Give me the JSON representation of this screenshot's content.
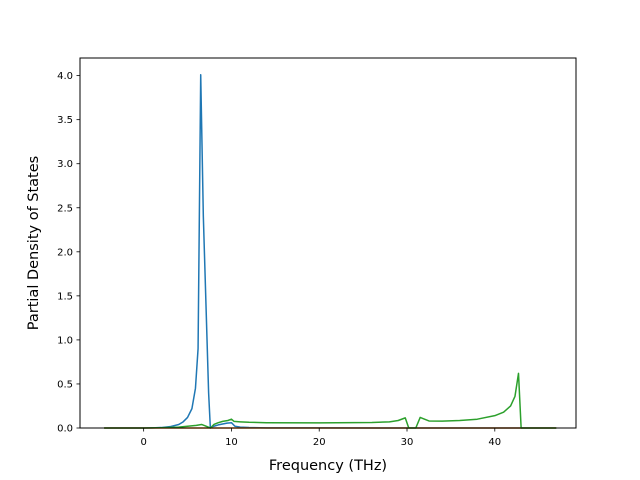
{
  "chart_data": {
    "type": "line",
    "title": "",
    "xlabel": "Frequency (THz)",
    "ylabel": "Partial Density of States",
    "xlim": [
      -7.25,
      49.25
    ],
    "ylim": [
      0.0,
      4.2
    ],
    "xticks": [
      0,
      10,
      20,
      30,
      40
    ],
    "yticks": [
      0.0,
      0.5,
      1.0,
      1.5,
      2.0,
      2.5,
      3.0,
      3.5,
      4.0
    ],
    "xtick_labels": [
      "0",
      "10",
      "20",
      "30",
      "40"
    ],
    "ytick_labels": [
      "0.0",
      "0.5",
      "1.0",
      "1.5",
      "2.0",
      "2.5",
      "3.0",
      "3.5",
      "4.0"
    ],
    "grid": false,
    "legend": "none",
    "series": [
      {
        "color": "#1f77b4",
        "points": [
          [
            -4.5,
            0.0
          ],
          [
            -1.0,
            0.0
          ],
          [
            0.0,
            0.0
          ],
          [
            1.0,
            0.002
          ],
          [
            2.0,
            0.005
          ],
          [
            3.0,
            0.015
          ],
          [
            4.0,
            0.04
          ],
          [
            4.5,
            0.07
          ],
          [
            5.0,
            0.12
          ],
          [
            5.5,
            0.22
          ],
          [
            5.9,
            0.45
          ],
          [
            6.2,
            0.9
          ],
          [
            6.5,
            4.01
          ],
          [
            6.8,
            2.4
          ],
          [
            7.1,
            1.4
          ],
          [
            7.4,
            0.4
          ],
          [
            7.6,
            0.0
          ],
          [
            8.0,
            0.02
          ],
          [
            8.5,
            0.035
          ],
          [
            9.0,
            0.045
          ],
          [
            9.5,
            0.055
          ],
          [
            10.0,
            0.06
          ],
          [
            10.4,
            0.02
          ],
          [
            11.0,
            0.01
          ],
          [
            12.0,
            0.005
          ],
          [
            14.0,
            0.002
          ],
          [
            20.0,
            0.001
          ],
          [
            30.0,
            0.0
          ],
          [
            40.0,
            0.0
          ],
          [
            47.0,
            0.0
          ]
        ]
      },
      {
        "color": "#ff7f0e",
        "points": [
          [
            -4.5,
            0.0
          ],
          [
            5.0,
            0.0
          ],
          [
            6.5,
            0.0
          ],
          [
            7.6,
            0.0
          ],
          [
            10.0,
            0.0
          ],
          [
            30.0,
            0.0
          ],
          [
            47.0,
            0.0
          ]
        ]
      },
      {
        "color": "#2ca02c",
        "points": [
          [
            -4.5,
            0.0
          ],
          [
            0.0,
            0.0
          ],
          [
            2.0,
            0.003
          ],
          [
            4.0,
            0.01
          ],
          [
            5.0,
            0.02
          ],
          [
            6.0,
            0.03
          ],
          [
            6.6,
            0.04
          ],
          [
            7.0,
            0.025
          ],
          [
            7.6,
            0.0
          ],
          [
            8.0,
            0.04
          ],
          [
            8.5,
            0.06
          ],
          [
            9.0,
            0.075
          ],
          [
            9.6,
            0.085
          ],
          [
            10.0,
            0.1
          ],
          [
            10.3,
            0.075
          ],
          [
            11.0,
            0.07
          ],
          [
            12.0,
            0.065
          ],
          [
            14.0,
            0.06
          ],
          [
            20.0,
            0.058
          ],
          [
            26.0,
            0.062
          ],
          [
            28.0,
            0.07
          ],
          [
            29.0,
            0.085
          ],
          [
            29.8,
            0.115
          ],
          [
            30.2,
            0.0
          ],
          [
            31.0,
            0.0
          ],
          [
            31.5,
            0.12
          ],
          [
            32.0,
            0.1
          ],
          [
            32.5,
            0.08
          ],
          [
            34.0,
            0.078
          ],
          [
            36.0,
            0.085
          ],
          [
            38.0,
            0.1
          ],
          [
            40.0,
            0.14
          ],
          [
            41.0,
            0.18
          ],
          [
            41.8,
            0.25
          ],
          [
            42.3,
            0.36
          ],
          [
            42.7,
            0.62
          ],
          [
            43.0,
            0.0
          ],
          [
            45.0,
            0.0
          ],
          [
            47.0,
            0.0
          ]
        ]
      }
    ]
  }
}
